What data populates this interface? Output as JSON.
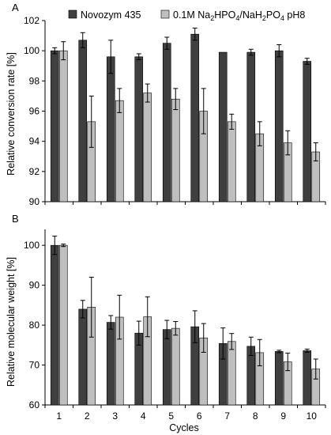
{
  "colors": {
    "series1": "#3f3f3f",
    "series2": "#bfbfbf",
    "axis": "#000000"
  },
  "legend": {
    "series1": "Novozym 435",
    "series2_prefix": "0.1M Na",
    "series2_sub1": "2",
    "series2_mid1": "HPO",
    "series2_sub2": "4",
    "series2_mid2": "/NaH",
    "series2_sub3": "2",
    "series2_mid3": "PO",
    "series2_sub4": "4",
    "series2_suffix": " pH8"
  },
  "chart_data": [
    {
      "type": "bar",
      "panel_label": "A",
      "categories": [
        "1",
        "2",
        "3",
        "4",
        "5",
        "6",
        "7",
        "8",
        "9",
        "10"
      ],
      "xlabel": "",
      "ylabel": "Relative conversion rate [%]",
      "ylim": [
        90,
        102
      ],
      "yticks": [
        90,
        92,
        94,
        96,
        98,
        100,
        102
      ],
      "series": [
        {
          "name": "Novozym 435",
          "values": [
            100.0,
            100.7,
            99.6,
            99.6,
            100.5,
            101.1,
            99.9,
            99.9,
            100.0,
            99.3
          ],
          "errors": [
            0.2,
            0.5,
            1.1,
            0.2,
            0.4,
            0.4,
            0.0,
            0.2,
            0.4,
            0.2
          ]
        },
        {
          "name": "0.1M Na2HPO4/NaH2PO4 pH8",
          "values": [
            100.0,
            95.3,
            96.7,
            97.2,
            96.8,
            96.0,
            95.3,
            94.5,
            93.9,
            93.3
          ],
          "errors": [
            0.6,
            1.7,
            0.8,
            0.6,
            0.7,
            1.5,
            0.5,
            0.8,
            0.8,
            0.6
          ]
        }
      ]
    },
    {
      "type": "bar",
      "panel_label": "B",
      "categories": [
        "1",
        "2",
        "3",
        "4",
        "5",
        "6",
        "7",
        "8",
        "9",
        "10"
      ],
      "xlabel": "Cycles",
      "ylabel": "Relative molecular weight [%]",
      "ylim": [
        60,
        104
      ],
      "yticks": [
        60,
        70,
        80,
        90,
        100
      ],
      "series": [
        {
          "name": "Novozym 435",
          "values": [
            100.0,
            84.0,
            80.7,
            78.0,
            78.9,
            79.6,
            75.4,
            74.7,
            73.4,
            73.6
          ],
          "errors": [
            2.3,
            2.2,
            1.7,
            3.0,
            2.3,
            4.0,
            3.9,
            2.3,
            0.3,
            0.4
          ]
        },
        {
          "name": "0.1M Na2HPO4/NaH2PO4 pH8",
          "values": [
            100.0,
            84.5,
            82.0,
            82.1,
            79.2,
            76.8,
            75.9,
            73.1,
            70.8,
            69.0
          ],
          "errors": [
            0.3,
            7.5,
            5.5,
            5.0,
            1.7,
            3.6,
            2.0,
            3.3,
            2.2,
            2.5
          ]
        }
      ]
    }
  ]
}
